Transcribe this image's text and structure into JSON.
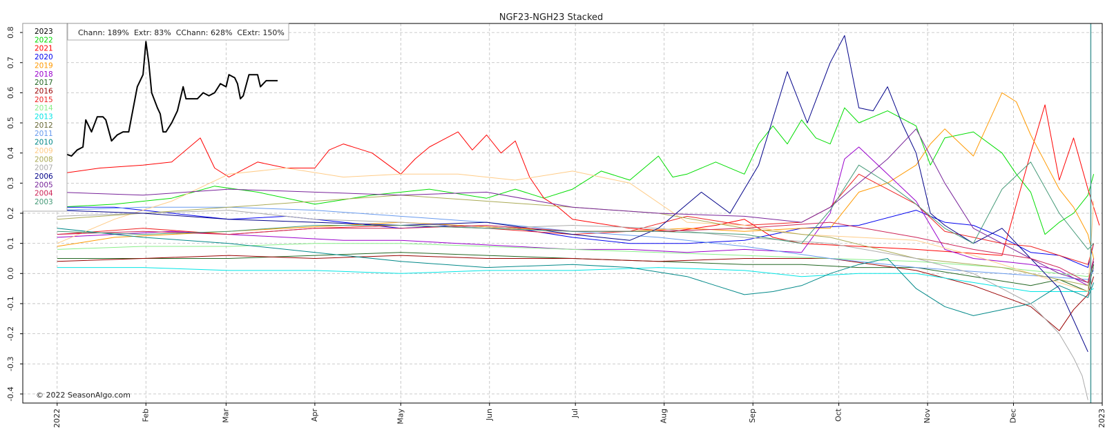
{
  "chart_data": {
    "type": "line",
    "title": "NGF23-NGH23  Stacked",
    "stats": "Chann: 189%  Extr: 83%  CChann: 628%  CExtr: 150%",
    "copyright": "© 2022 SeasonAlgo.com",
    "xlabel": "",
    "ylabel": "",
    "x_ticks": [
      "2022",
      "Feb",
      "Mar",
      "Apr",
      "May",
      "Jun",
      "Jul",
      "Aug",
      "Sep",
      "Oct",
      "Nov",
      "Dec",
      "2023"
    ],
    "x_tick_days": [
      0,
      31,
      59,
      90,
      120,
      151,
      181,
      212,
      243,
      273,
      304,
      334,
      365
    ],
    "xlim": [
      -12,
      365
    ],
    "y_ticks": [
      "-0.4",
      "-0.3",
      "-0.2",
      "-0.1",
      "0.0",
      "0.1",
      "0.2",
      "0.3",
      "0.4",
      "0.5",
      "0.6",
      "0.7",
      "0.8"
    ],
    "ylim": [
      -0.43,
      0.83
    ],
    "grid": true,
    "legend_position": "top-left",
    "current_day": 361,
    "series": [
      {
        "name": "2023",
        "color": "#000000",
        "width": 2,
        "x": [
          0,
          2,
          5,
          7,
          9,
          10,
          12,
          14,
          16,
          17,
          19,
          21,
          23,
          25,
          26,
          28,
          30,
          31,
          32,
          33,
          35,
          36,
          37,
          38,
          40,
          42,
          44,
          45,
          47,
          49,
          51,
          53,
          55,
          57,
          59,
          60,
          62,
          63,
          64,
          65,
          67,
          69,
          70,
          71,
          73,
          75,
          76,
          77
        ],
        "y": [
          0.38,
          0.4,
          0.39,
          0.41,
          0.42,
          0.51,
          0.47,
          0.52,
          0.52,
          0.51,
          0.44,
          0.46,
          0.47,
          0.47,
          0.52,
          0.62,
          0.66,
          0.77,
          0.7,
          0.6,
          0.55,
          0.53,
          0.47,
          0.47,
          0.5,
          0.54,
          0.62,
          0.58,
          0.58,
          0.58,
          0.6,
          0.59,
          0.6,
          0.63,
          0.62,
          0.66,
          0.65,
          0.63,
          0.58,
          0.59,
          0.66,
          0.66,
          0.66,
          0.62,
          0.64,
          0.64,
          0.64,
          0.64
        ]
      },
      {
        "name": "2022",
        "color": "#00dd00",
        "width": 1,
        "x": [
          0,
          20,
          40,
          55,
          70,
          90,
          110,
          130,
          150,
          160,
          170,
          180,
          190,
          200,
          210,
          215,
          220,
          230,
          240,
          245,
          250,
          255,
          260,
          265,
          270,
          275,
          280,
          290,
          300,
          305,
          310,
          320,
          330,
          335,
          340,
          345,
          350,
          355,
          360,
          362
        ],
        "y": [
          0.22,
          0.23,
          0.25,
          0.29,
          0.27,
          0.23,
          0.26,
          0.28,
          0.25,
          0.28,
          0.25,
          0.28,
          0.34,
          0.31,
          0.39,
          0.32,
          0.33,
          0.37,
          0.33,
          0.43,
          0.49,
          0.43,
          0.51,
          0.45,
          0.43,
          0.55,
          0.5,
          0.54,
          0.49,
          0.36,
          0.45,
          0.47,
          0.4,
          0.33,
          0.27,
          0.13,
          0.17,
          0.2,
          0.26,
          0.33
        ]
      },
      {
        "name": "2021",
        "color": "#ff0000",
        "width": 1,
        "x": [
          0,
          15,
          30,
          40,
          50,
          55,
          60,
          70,
          80,
          90,
          95,
          100,
          110,
          120,
          125,
          130,
          140,
          145,
          150,
          155,
          160,
          165,
          170,
          175,
          180,
          200,
          215,
          230,
          240,
          250,
          260,
          280,
          300,
          315,
          330,
          340,
          345,
          350,
          355,
          360,
          364
        ],
        "y": [
          0.33,
          0.35,
          0.36,
          0.37,
          0.45,
          0.35,
          0.32,
          0.37,
          0.35,
          0.35,
          0.41,
          0.43,
          0.4,
          0.33,
          0.38,
          0.42,
          0.47,
          0.41,
          0.46,
          0.4,
          0.44,
          0.32,
          0.25,
          0.22,
          0.18,
          0.15,
          0.14,
          0.16,
          0.18,
          0.12,
          0.1,
          0.09,
          0.08,
          0.07,
          0.06,
          0.4,
          0.56,
          0.31,
          0.45,
          0.28,
          0.16
        ]
      },
      {
        "name": "2020",
        "color": "#0000ee",
        "width": 1,
        "x": [
          0,
          20,
          40,
          60,
          80,
          100,
          120,
          140,
          160,
          180,
          200,
          220,
          240,
          260,
          280,
          300,
          310,
          320,
          330,
          340,
          350,
          360,
          362
        ],
        "y": [
          0.22,
          0.22,
          0.2,
          0.18,
          0.19,
          0.17,
          0.15,
          0.16,
          0.15,
          0.12,
          0.1,
          0.1,
          0.11,
          0.15,
          0.16,
          0.21,
          0.17,
          0.16,
          0.12,
          0.07,
          0.06,
          0.02,
          0.1
        ]
      },
      {
        "name": "2019",
        "color": "#ff9900",
        "width": 1,
        "x": [
          0,
          20,
          40,
          60,
          80,
          100,
          120,
          140,
          160,
          180,
          200,
          220,
          240,
          260,
          270,
          280,
          290,
          300,
          305,
          310,
          320,
          330,
          335,
          340,
          345,
          350,
          355,
          360,
          362
        ],
        "y": [
          0.09,
          0.12,
          0.13,
          0.14,
          0.15,
          0.16,
          0.17,
          0.16,
          0.15,
          0.14,
          0.14,
          0.15,
          0.14,
          0.15,
          0.15,
          0.27,
          0.3,
          0.36,
          0.43,
          0.48,
          0.39,
          0.6,
          0.57,
          0.46,
          0.37,
          0.28,
          0.22,
          0.13,
          0.05
        ]
      },
      {
        "name": "2018",
        "color": "#9900cc",
        "width": 1,
        "x": [
          0,
          20,
          40,
          60,
          80,
          100,
          120,
          140,
          160,
          180,
          200,
          220,
          240,
          260,
          270,
          275,
          280,
          290,
          300,
          310,
          320,
          330,
          340,
          350,
          360,
          362
        ],
        "y": [
          0.12,
          0.13,
          0.14,
          0.13,
          0.12,
          0.11,
          0.11,
          0.1,
          0.09,
          0.08,
          0.08,
          0.07,
          0.08,
          0.07,
          0.2,
          0.38,
          0.42,
          0.33,
          0.24,
          0.08,
          0.05,
          0.04,
          0.03,
          0.01,
          -0.04,
          0.02
        ]
      },
      {
        "name": "2017",
        "color": "#226622",
        "width": 1,
        "x": [
          0,
          30,
          60,
          90,
          120,
          150,
          180,
          210,
          240,
          260,
          280,
          300,
          320,
          340,
          350,
          360,
          362
        ],
        "y": [
          0.05,
          0.05,
          0.05,
          0.06,
          0.07,
          0.06,
          0.05,
          0.04,
          0.03,
          0.03,
          0.02,
          0.02,
          -0.01,
          -0.04,
          -0.02,
          -0.06,
          0.03
        ]
      },
      {
        "name": "2016",
        "color": "#990000",
        "width": 1,
        "x": [
          0,
          30,
          60,
          90,
          120,
          150,
          180,
          210,
          240,
          270,
          300,
          320,
          340,
          350,
          355,
          360,
          362
        ],
        "y": [
          0.04,
          0.05,
          0.06,
          0.05,
          0.06,
          0.05,
          0.05,
          0.04,
          0.05,
          0.05,
          0.01,
          -0.04,
          -0.11,
          -0.19,
          -0.12,
          -0.07,
          -0.01
        ]
      },
      {
        "name": "2015",
        "color": "#ee2222",
        "width": 1,
        "x": [
          0,
          30,
          60,
          90,
          120,
          150,
          180,
          200,
          220,
          240,
          260,
          270,
          280,
          290,
          300,
          310,
          320,
          330,
          340,
          350,
          360,
          362
        ],
        "y": [
          0.13,
          0.15,
          0.13,
          0.15,
          0.16,
          0.15,
          0.13,
          0.14,
          0.19,
          0.16,
          0.17,
          0.22,
          0.33,
          0.28,
          0.23,
          0.14,
          0.12,
          0.1,
          0.09,
          0.06,
          0.03,
          0.1
        ]
      },
      {
        "name": "2014",
        "color": "#88ee88",
        "width": 1,
        "x": [
          0,
          30,
          60,
          90,
          120,
          150,
          180,
          210,
          240,
          270,
          300,
          330,
          360,
          362
        ],
        "y": [
          0.08,
          0.09,
          0.09,
          0.1,
          0.1,
          0.09,
          0.08,
          0.07,
          0.06,
          0.05,
          0.04,
          0.02,
          -0.01,
          0.02
        ]
      },
      {
        "name": "2013",
        "color": "#00e5e5",
        "width": 1,
        "x": [
          0,
          30,
          60,
          90,
          120,
          150,
          180,
          210,
          240,
          260,
          280,
          300,
          320,
          340,
          360,
          362
        ],
        "y": [
          0.02,
          0.02,
          0.01,
          0.01,
          0.0,
          0.01,
          0.01,
          0.02,
          0.01,
          -0.01,
          0.0,
          0.0,
          -0.03,
          -0.06,
          -0.06,
          -0.05
        ]
      },
      {
        "name": "2011",
        "color": "#6699ee",
        "width": 1,
        "x": [
          0,
          30,
          60,
          90,
          120,
          150,
          180,
          210,
          240,
          270,
          300,
          330,
          360,
          362
        ],
        "y": [
          0.21,
          0.22,
          0.22,
          0.21,
          0.19,
          0.17,
          0.14,
          0.12,
          0.09,
          0.05,
          0.02,
          0.0,
          -0.02,
          0.01
        ]
      },
      {
        "name": "2010",
        "color": "#008888",
        "width": 1,
        "x": [
          0,
          30,
          60,
          90,
          120,
          150,
          180,
          200,
          220,
          230,
          240,
          250,
          260,
          270,
          280,
          290,
          300,
          310,
          320,
          330,
          340,
          350,
          360,
          362
        ],
        "y": [
          0.15,
          0.12,
          0.1,
          0.07,
          0.04,
          0.02,
          0.03,
          0.02,
          -0.01,
          -0.04,
          -0.07,
          -0.06,
          -0.04,
          0.0,
          0.03,
          0.05,
          -0.05,
          -0.11,
          -0.14,
          -0.12,
          -0.1,
          -0.04,
          -0.08,
          -0.03
        ]
      },
      {
        "name": "2009",
        "color": "#ffcc88",
        "width": 1,
        "x": [
          0,
          20,
          40,
          60,
          80,
          100,
          120,
          140,
          160,
          180,
          200,
          220,
          240,
          260,
          280,
          300,
          320,
          340,
          360,
          362
        ],
        "y": [
          0.1,
          0.18,
          0.24,
          0.33,
          0.35,
          0.32,
          0.33,
          0.33,
          0.31,
          0.34,
          0.3,
          0.17,
          0.16,
          0.13,
          0.12,
          0.11,
          0.06,
          0.0,
          -0.06,
          0.24
        ]
      },
      {
        "name": "2008",
        "color": "#aaaa55",
        "width": 1,
        "x": [
          0,
          30,
          60,
          90,
          120,
          150,
          180,
          210,
          240,
          270,
          300,
          330,
          360,
          362
        ],
        "y": [
          0.18,
          0.2,
          0.22,
          0.24,
          0.26,
          0.24,
          0.22,
          0.2,
          0.15,
          0.12,
          0.05,
          0.02,
          -0.04,
          0.04
        ]
      },
      {
        "name": "2007",
        "color": "#aaaaaa",
        "width": 1,
        "x": [
          0,
          30,
          60,
          90,
          120,
          150,
          180,
          210,
          240,
          270,
          300,
          320,
          340,
          350,
          355,
          358,
          360
        ],
        "y": [
          0.19,
          0.2,
          0.21,
          0.18,
          0.17,
          0.15,
          0.16,
          0.15,
          0.12,
          0.1,
          0.05,
          0.0,
          -0.1,
          -0.2,
          -0.28,
          -0.34,
          -0.42
        ]
      },
      {
        "name": "2006",
        "color": "#000088",
        "width": 1,
        "x": [
          0,
          30,
          60,
          90,
          120,
          150,
          180,
          200,
          210,
          225,
          235,
          245,
          255,
          262,
          270,
          275,
          280,
          285,
          290,
          295,
          300,
          305,
          310,
          320,
          330,
          340,
          350,
          360
        ],
        "y": [
          0.21,
          0.2,
          0.18,
          0.17,
          0.16,
          0.17,
          0.13,
          0.11,
          0.15,
          0.27,
          0.2,
          0.36,
          0.67,
          0.5,
          0.7,
          0.79,
          0.55,
          0.54,
          0.62,
          0.5,
          0.4,
          0.2,
          0.16,
          0.1,
          0.15,
          0.05,
          -0.05,
          -0.26
        ]
      },
      {
        "name": "2005",
        "color": "#772299",
        "width": 1,
        "x": [
          0,
          30,
          60,
          90,
          120,
          150,
          180,
          210,
          240,
          260,
          270,
          280,
          290,
          300,
          310,
          320,
          330,
          340,
          350,
          360,
          362
        ],
        "y": [
          0.27,
          0.26,
          0.28,
          0.27,
          0.26,
          0.27,
          0.22,
          0.2,
          0.19,
          0.17,
          0.22,
          0.3,
          0.38,
          0.48,
          0.3,
          0.15,
          0.1,
          0.05,
          0.0,
          -0.03,
          0.04
        ]
      },
      {
        "name": "2004",
        "color": "#cc2255",
        "width": 1,
        "x": [
          0,
          30,
          60,
          90,
          120,
          150,
          180,
          210,
          240,
          270,
          300,
          320,
          340,
          350,
          360,
          362
        ],
        "y": [
          0.13,
          0.14,
          0.13,
          0.15,
          0.15,
          0.16,
          0.14,
          0.14,
          0.15,
          0.17,
          0.12,
          0.08,
          0.05,
          0.02,
          -0.03,
          0.05
        ]
      },
      {
        "name": "2003",
        "color": "#449977",
        "width": 1,
        "x": [
          0,
          30,
          60,
          90,
          120,
          150,
          180,
          210,
          240,
          260,
          270,
          280,
          290,
          300,
          310,
          320,
          330,
          340,
          350,
          360,
          362
        ],
        "y": [
          0.14,
          0.13,
          0.14,
          0.16,
          0.16,
          0.15,
          0.14,
          0.14,
          0.13,
          0.1,
          0.21,
          0.36,
          0.3,
          0.23,
          0.15,
          0.1,
          0.28,
          0.37,
          0.2,
          0.08,
          0.1
        ]
      }
    ],
    "legend_only": [
      {
        "name": "2012",
        "color": "#666633"
      }
    ]
  }
}
